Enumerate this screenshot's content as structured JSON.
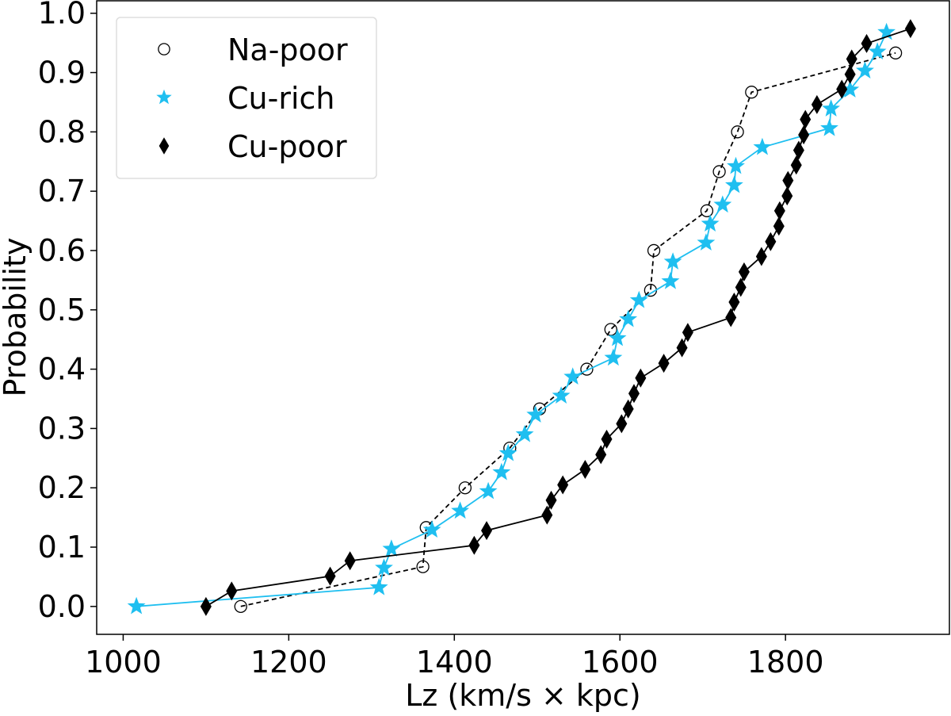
{
  "chart_data": {
    "type": "line",
    "title": "",
    "xlabel": "Lz (km/s × kpc)",
    "ylabel": "Probability",
    "xlim": [
      968,
      1998
    ],
    "ylim": [
      -0.047,
      1.021
    ],
    "xticks": [
      1000,
      1200,
      1400,
      1600,
      1800
    ],
    "yticks": [
      0.0,
      0.1,
      0.2,
      0.3,
      0.4,
      0.5,
      0.6,
      0.7,
      0.8,
      0.9,
      1.0
    ],
    "ytick_labels": [
      "0.0",
      "0.1",
      "0.2",
      "0.3",
      "0.4",
      "0.5",
      "0.6",
      "0.7",
      "0.8",
      "0.9",
      "1.0"
    ],
    "grid": false,
    "legend_position": "top-left",
    "series": [
      {
        "name": "Na-poor",
        "marker": "open-circle",
        "line": "dashed",
        "color": "#000000",
        "x": [
          1142,
          1362,
          1366,
          1413,
          1467,
          1503,
          1560,
          1589,
          1637,
          1641,
          1705,
          1720,
          1742,
          1759,
          1933
        ],
        "y": [
          0.0,
          0.067,
          0.133,
          0.2,
          0.267,
          0.333,
          0.4,
          0.467,
          0.533,
          0.6,
          0.667,
          0.733,
          0.8,
          0.867,
          0.933
        ]
      },
      {
        "name": "Cu-rich",
        "marker": "star",
        "line": "solid",
        "color": "#1fbff0",
        "x": [
          1016,
          1309,
          1315,
          1324,
          1373,
          1407,
          1441,
          1457,
          1465,
          1485,
          1498,
          1529,
          1543,
          1592,
          1597,
          1610,
          1623,
          1661,
          1664,
          1704,
          1709,
          1724,
          1738,
          1740,
          1772,
          1853,
          1855,
          1878,
          1896,
          1911,
          1922
        ],
        "y": [
          0.0,
          0.032,
          0.065,
          0.097,
          0.129,
          0.161,
          0.194,
          0.226,
          0.258,
          0.29,
          0.323,
          0.355,
          0.387,
          0.419,
          0.452,
          0.484,
          0.516,
          0.548,
          0.581,
          0.613,
          0.645,
          0.677,
          0.71,
          0.742,
          0.774,
          0.806,
          0.839,
          0.871,
          0.903,
          0.935,
          0.968
        ]
      },
      {
        "name": "Cu-poor",
        "marker": "thin-diamond",
        "line": "solid",
        "color": "#000000",
        "x": [
          1100,
          1131,
          1250,
          1274,
          1424,
          1439,
          1512,
          1517,
          1531,
          1558,
          1577,
          1584,
          1602,
          1610,
          1617,
          1625,
          1653,
          1675,
          1682,
          1734,
          1738,
          1746,
          1750,
          1771,
          1782,
          1792,
          1793,
          1802,
          1803,
          1813,
          1816,
          1822,
          1824,
          1838,
          1868,
          1878,
          1880,
          1898,
          1951
        ],
        "y": [
          0.0,
          0.026,
          0.051,
          0.077,
          0.103,
          0.128,
          0.154,
          0.179,
          0.205,
          0.231,
          0.256,
          0.282,
          0.308,
          0.333,
          0.359,
          0.385,
          0.41,
          0.436,
          0.462,
          0.487,
          0.513,
          0.538,
          0.564,
          0.59,
          0.615,
          0.641,
          0.667,
          0.692,
          0.718,
          0.744,
          0.769,
          0.795,
          0.821,
          0.846,
          0.872,
          0.897,
          0.923,
          0.949,
          0.974
        ]
      }
    ]
  }
}
